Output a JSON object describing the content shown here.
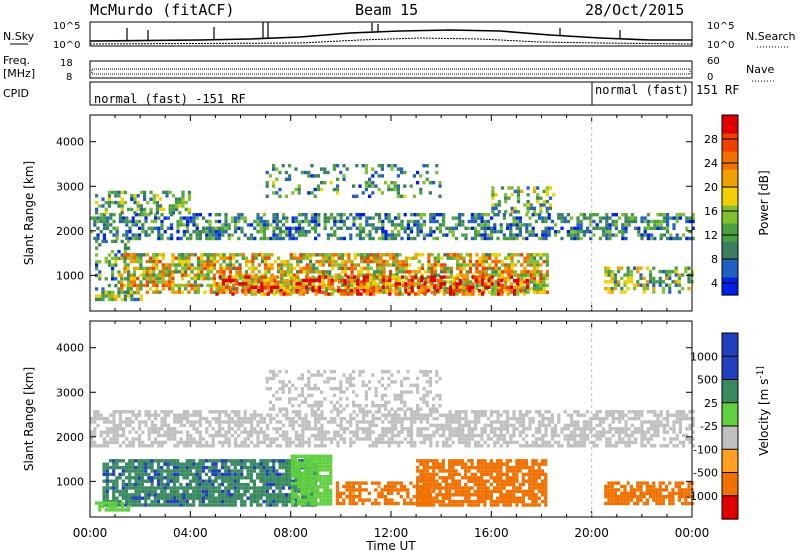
{
  "header": {
    "station": "McMurdo (fitACF)",
    "beam": "Beam 15",
    "date": "28/Oct/2015"
  },
  "noise_panel": {
    "left_label": "N.Sky",
    "right_label": "N.Search",
    "tick_top": "10^5",
    "tick_bottom": "10^0",
    "right_tick_top": "10^5",
    "right_tick_bottom": "10^0"
  },
  "freq_panel": {
    "left_label_top": "Freq.",
    "left_label_bottom": "[MHz]",
    "right_label": "Nave",
    "tick_top": "18",
    "tick_bottom": "8",
    "right_tick_top": "60",
    "right_tick_bottom": "0"
  },
  "cpid_panel": {
    "label": "CPID",
    "segments": [
      {
        "text": "normal (fast) -151 RF",
        "start_hour": 0,
        "end_hour": 20
      },
      {
        "text": "normal (fast) 151 RF",
        "start_hour": 20,
        "end_hour": 24
      }
    ]
  },
  "chart_data": [
    {
      "type": "heatmap",
      "title": "",
      "xlabel": "Time UT",
      "ylabel": "Slant Range [km]",
      "xlim": [
        0,
        24
      ],
      "ylim": [
        200,
        4600
      ],
      "x_ticks": [
        "00:00",
        "04:00",
        "08:00",
        "12:00",
        "16:00",
        "20:00",
        "00:00"
      ],
      "x_tick_hours": [
        0,
        4,
        8,
        12,
        16,
        20,
        24
      ],
      "y_ticks": [
        1000,
        2000,
        3000,
        4000
      ],
      "colorbar": {
        "label": "Power [dB]",
        "ticks": [
          4,
          8,
          12,
          16,
          20,
          24,
          28
        ],
        "colors": [
          "#0020e8",
          "#2060c0",
          "#3a8060",
          "#48a040",
          "#80c030",
          "#f0d000",
          "#f0a000",
          "#f07000",
          "#f04000",
          "#e00000"
        ]
      },
      "bands": [
        {
          "start_hour": 0.0,
          "end_hour": 24.0,
          "range_low": 1800,
          "range_high": 2400,
          "value": 9,
          "density": 0.55
        },
        {
          "start_hour": 0.2,
          "end_hour": 4.0,
          "range_low": 2400,
          "range_high": 2900,
          "value": 11,
          "density": 0.5
        },
        {
          "start_hour": 7.0,
          "end_hour": 14.0,
          "range_low": 2800,
          "range_high": 3500,
          "value": 10,
          "density": 0.25
        },
        {
          "start_hour": 16.0,
          "end_hour": 18.5,
          "range_low": 2400,
          "range_high": 3000,
          "value": 12,
          "density": 0.45
        },
        {
          "start_hour": 0.2,
          "end_hour": 1.5,
          "range_low": 600,
          "range_high": 1800,
          "value": 10,
          "density": 0.35
        },
        {
          "start_hour": 0.2,
          "end_hour": 2.0,
          "range_low": 450,
          "range_high": 650,
          "value": 14,
          "density": 0.6
        },
        {
          "start_hour": 1.2,
          "end_hour": 18.2,
          "range_low": 600,
          "range_high": 1500,
          "value": 18,
          "density": 0.7
        },
        {
          "start_hour": 5.0,
          "end_hour": 17.5,
          "range_low": 600,
          "range_high": 1000,
          "value": 25,
          "density": 0.6
        },
        {
          "start_hour": 20.5,
          "end_hour": 24.0,
          "range_low": 600,
          "range_high": 1200,
          "value": 14,
          "density": 0.55
        }
      ]
    },
    {
      "type": "heatmap",
      "title": "",
      "xlabel": "Time UT",
      "ylabel": "Slant Range [km]",
      "xlim": [
        0,
        24
      ],
      "ylim": [
        200,
        4600
      ],
      "x_ticks": [
        "00:00",
        "04:00",
        "08:00",
        "12:00",
        "16:00",
        "20:00",
        "00:00"
      ],
      "x_tick_hours": [
        0,
        4,
        8,
        12,
        16,
        20,
        24
      ],
      "y_ticks": [
        1000,
        2000,
        3000,
        4000
      ],
      "colorbar": {
        "label": "Velocity [m s^-1]",
        "ticks": [
          1000,
          500,
          25,
          -25,
          -100,
          -500,
          -1000
        ],
        "colors": [
          "#2040c0",
          "#3a8a60",
          "#60d040",
          "#c0c0c0",
          "#ffa020",
          "#f07000",
          "#e00000"
        ]
      },
      "bands": [
        {
          "start_hour": 0.0,
          "end_hour": 24.0,
          "range_low": 1800,
          "range_high": 2600,
          "value": 0,
          "density": 0.6
        },
        {
          "start_hour": 7.0,
          "end_hour": 14.0,
          "range_low": 2600,
          "range_high": 3500,
          "value": 0,
          "density": 0.35
        },
        {
          "start_hour": 0.5,
          "end_hour": 9.0,
          "range_low": 500,
          "range_high": 1500,
          "value": 600,
          "density": 0.85
        },
        {
          "start_hour": 8.0,
          "end_hour": 9.6,
          "range_low": 500,
          "range_high": 1600,
          "value": 200,
          "density": 0.85
        },
        {
          "start_hour": 9.8,
          "end_hour": 13.5,
          "range_low": 500,
          "range_high": 1000,
          "value": -200,
          "density": 0.6
        },
        {
          "start_hour": 13.0,
          "end_hour": 18.2,
          "range_low": 500,
          "range_high": 1500,
          "value": -300,
          "density": 0.8
        },
        {
          "start_hour": 20.5,
          "end_hour": 24.0,
          "range_low": 500,
          "range_high": 1000,
          "value": -400,
          "density": 0.7
        },
        {
          "start_hour": 0.2,
          "end_hour": 1.5,
          "range_low": 350,
          "range_high": 550,
          "value": 200,
          "density": 0.7
        }
      ]
    }
  ]
}
